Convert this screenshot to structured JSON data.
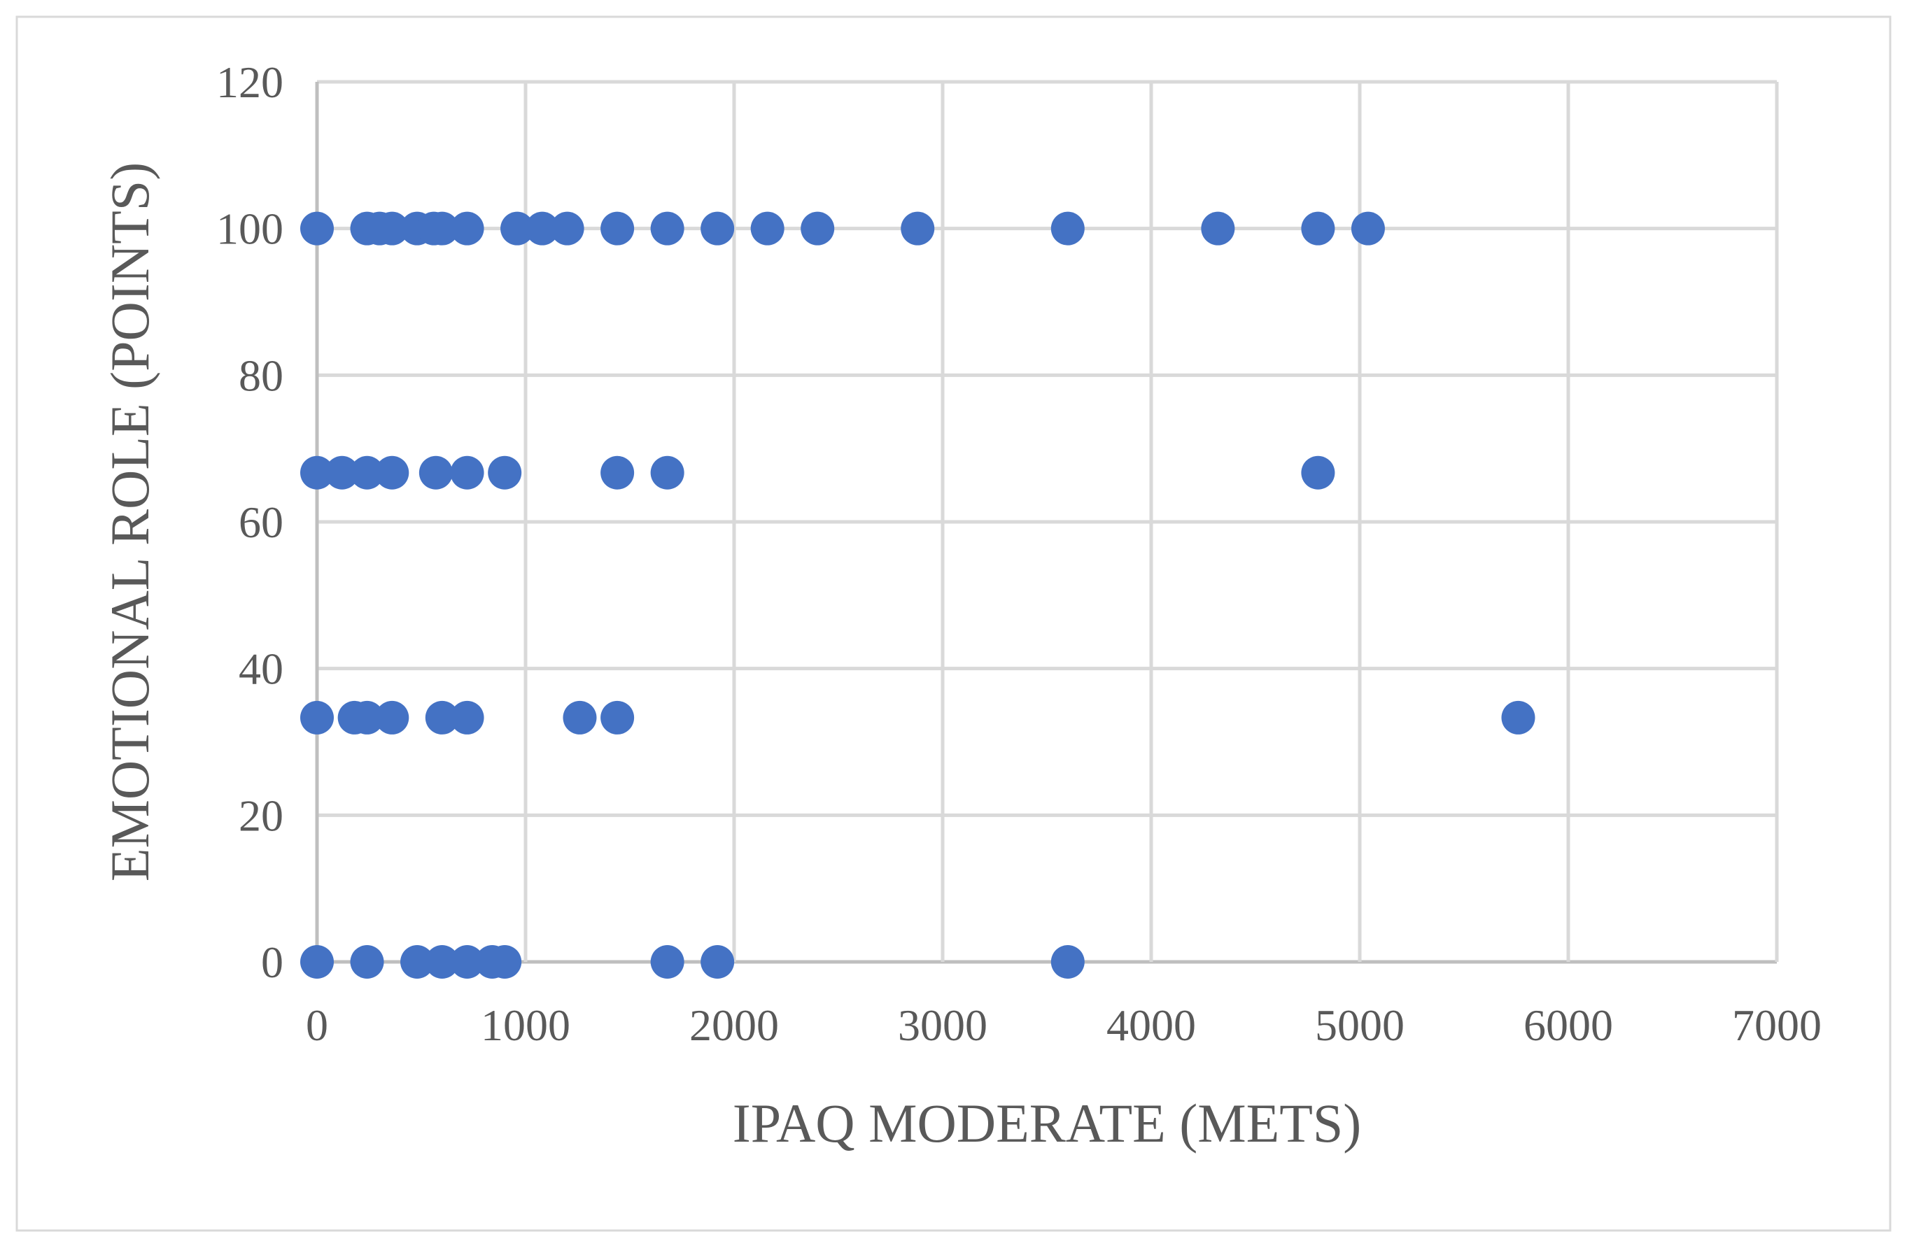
{
  "chart_data": {
    "type": "scatter",
    "title": "",
    "xlabel": "IPAQ MODERATE (METS)",
    "ylabel": "EMOTIONAL ROLE (POINTS)",
    "xlim": [
      0,
      7000
    ],
    "ylim": [
      0,
      120
    ],
    "xticks": [
      0,
      1000,
      2000,
      3000,
      4000,
      5000,
      6000,
      7000
    ],
    "yticks": [
      0,
      20,
      40,
      60,
      80,
      100,
      120
    ],
    "grid": true,
    "legend": "none",
    "marker_color": "#4472C4",
    "series": [
      {
        "points": [
          [
            0,
            100
          ],
          [
            240,
            100
          ],
          [
            300,
            100
          ],
          [
            360,
            100
          ],
          [
            480,
            100
          ],
          [
            560,
            100
          ],
          [
            600,
            100
          ],
          [
            720,
            100
          ],
          [
            960,
            100
          ],
          [
            1080,
            100
          ],
          [
            1200,
            100
          ],
          [
            1440,
            100
          ],
          [
            1680,
            100
          ],
          [
            1920,
            100
          ],
          [
            2160,
            100
          ],
          [
            2400,
            100
          ],
          [
            2880,
            100
          ],
          [
            3600,
            100
          ],
          [
            4320,
            100
          ],
          [
            4800,
            100
          ],
          [
            5040,
            100
          ],
          [
            0,
            66.7
          ],
          [
            120,
            66.7
          ],
          [
            240,
            66.7
          ],
          [
            360,
            66.7
          ],
          [
            570,
            66.7
          ],
          [
            720,
            66.7
          ],
          [
            900,
            66.7
          ],
          [
            1440,
            66.7
          ],
          [
            1680,
            66.7
          ],
          [
            4800,
            66.7
          ],
          [
            0,
            33.3
          ],
          [
            180,
            33.3
          ],
          [
            240,
            33.3
          ],
          [
            360,
            33.3
          ],
          [
            600,
            33.3
          ],
          [
            720,
            33.3
          ],
          [
            1260,
            33.3
          ],
          [
            1440,
            33.3
          ],
          [
            5760,
            33.3
          ],
          [
            0,
            0
          ],
          [
            240,
            0
          ],
          [
            480,
            0
          ],
          [
            600,
            0
          ],
          [
            720,
            0
          ],
          [
            840,
            0
          ],
          [
            900,
            0
          ],
          [
            1680,
            0
          ],
          [
            1920,
            0
          ],
          [
            3600,
            0
          ]
        ]
      }
    ]
  }
}
